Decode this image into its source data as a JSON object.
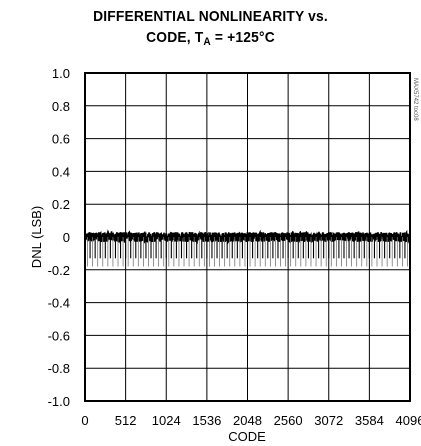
{
  "chart_data": {
    "type": "line",
    "title_line1": "DIFFERENTIAL NONLINEARITY vs.",
    "title_line2_main": "CODE, T",
    "title_line2_sub": "A",
    "title_line2_rest": " = +125°C",
    "xlabel": "CODE",
    "ylabel": "DNL (LSB)",
    "side_label": "MAX5742 toc08",
    "xlim": [
      0,
      4096
    ],
    "ylim": [
      -1.0,
      1.0
    ],
    "x_ticks": [
      0,
      512,
      1024,
      1536,
      2048,
      2560,
      3072,
      3584,
      4096
    ],
    "x_tick_labels": [
      "0",
      "512",
      "1024",
      "1536",
      "2048",
      "2560",
      "3072",
      "3584",
      "4096"
    ],
    "y_ticks": [
      1.0,
      0.8,
      0.6,
      0.4,
      0.2,
      0,
      -0.2,
      -0.4,
      -0.6,
      -0.8,
      -1.0
    ],
    "y_tick_labels": [
      "1.0",
      "0.8",
      "0.6",
      "0.4",
      "0.2",
      "0",
      "-0.2",
      "-0.4",
      "-0.6",
      "-0.8",
      "-1.0"
    ],
    "grid": true,
    "series": [
      {
        "color": "#000000",
        "noise_band": [
          -0.03,
          0.03
        ],
        "major_spike_period": 64,
        "major_spike_value": -0.13,
        "minor_spike_period": 64,
        "minor_spike_offset": 32,
        "minor_spike_value": -0.18
      }
    ]
  }
}
